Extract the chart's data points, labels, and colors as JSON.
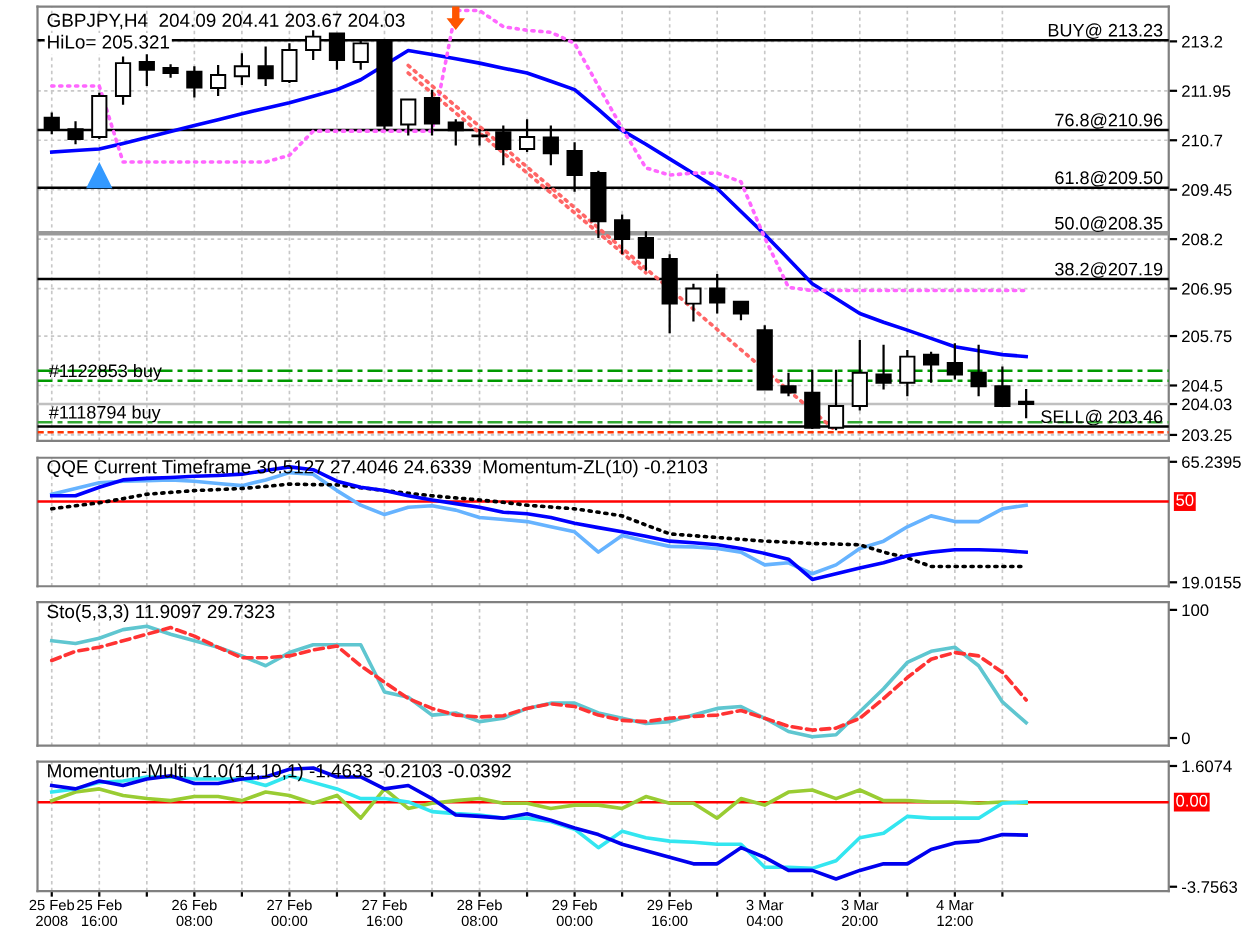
{
  "chart_data": [
    {
      "type": "candlestick",
      "title": "GBPJPY,H4  204.09 204.41 203.67 204.03",
      "subtitle": "HiLo= 205.321",
      "categories": [
        null,
        null,
        null,
        null,
        null,
        null,
        null,
        null,
        null,
        null,
        null,
        null,
        null,
        null,
        null,
        null,
        null,
        null,
        null,
        null,
        null,
        null,
        null,
        null,
        null,
        null,
        null,
        null,
        null,
        null,
        null,
        null,
        null,
        null,
        null,
        null,
        null,
        null,
        null,
        null,
        null,
        null
      ],
      "ohlc": [
        [
          211.27,
          211.4,
          210.85,
          211.0
        ],
        [
          210.98,
          211.18,
          210.6,
          210.73
        ],
        [
          210.78,
          211.9,
          210.73,
          211.82
        ],
        [
          211.82,
          212.82,
          211.6,
          212.65
        ],
        [
          212.68,
          212.9,
          212.07,
          212.48
        ],
        [
          212.53,
          212.62,
          212.28,
          212.4
        ],
        [
          212.43,
          212.57,
          211.78,
          212.03
        ],
        [
          212.02,
          212.6,
          211.82,
          212.35
        ],
        [
          212.32,
          212.9,
          212.1,
          212.57
        ],
        [
          212.57,
          213.07,
          212.07,
          212.27
        ],
        [
          212.2,
          213.15,
          212.15,
          212.98
        ],
        [
          212.98,
          213.48,
          212.73,
          213.32
        ],
        [
          213.4,
          213.4,
          212.48,
          212.73
        ],
        [
          212.68,
          213.23,
          212.48,
          213.15
        ],
        [
          213.2,
          213.23,
          210.98,
          211.07
        ],
        [
          211.1,
          211.73,
          210.82,
          211.73
        ],
        [
          211.77,
          211.98,
          210.82,
          211.12
        ],
        [
          211.15,
          211.23,
          210.57,
          210.95
        ],
        [
          210.82,
          210.98,
          210.57,
          210.8
        ],
        [
          210.9,
          211.07,
          210.07,
          210.48
        ],
        [
          210.48,
          211.23,
          210.4,
          210.78
        ],
        [
          210.77,
          211.07,
          210.07,
          210.37
        ],
        [
          210.43,
          210.65,
          209.4,
          209.82
        ],
        [
          209.87,
          209.93,
          208.23,
          208.65
        ],
        [
          208.68,
          208.82,
          207.82,
          208.2
        ],
        [
          208.23,
          208.4,
          207.4,
          207.73
        ],
        [
          207.7,
          207.82,
          205.82,
          206.57
        ],
        [
          206.57,
          207.07,
          206.12,
          206.95
        ],
        [
          206.95,
          207.32,
          206.32,
          206.6
        ],
        [
          206.62,
          206.62,
          206.15,
          206.32
        ],
        [
          205.9,
          206.02,
          204.4,
          204.4
        ],
        [
          204.48,
          204.82,
          204.23,
          204.32
        ],
        [
          204.32,
          204.9,
          203.4,
          203.43
        ],
        [
          203.43,
          204.9,
          203.37,
          203.98
        ],
        [
          203.98,
          205.65,
          203.87,
          204.82
        ],
        [
          204.78,
          205.53,
          204.4,
          204.57
        ],
        [
          204.57,
          205.4,
          204.23,
          205.23
        ],
        [
          205.28,
          205.35,
          204.57,
          205.03
        ],
        [
          205.07,
          205.57,
          204.65,
          204.78
        ],
        [
          204.82,
          205.53,
          204.23,
          204.48
        ],
        [
          204.48,
          204.98,
          203.98,
          203.98
        ],
        [
          204.09,
          204.41,
          203.67,
          204.03
        ]
      ],
      "series": [
        {
          "type": "line",
          "color": "#0000ff",
          "line_style": "solid",
          "values": [
            210.4,
            210.44,
            210.48,
            210.62,
            210.77,
            210.92,
            211.07,
            211.22,
            211.37,
            211.51,
            211.65,
            211.81,
            211.98,
            212.23,
            null,
            212.97,
            212.87,
            212.76,
            212.65,
            212.52,
            212.4,
            212.19,
            211.98,
            211.48,
            210.95,
            210.6,
            210.23,
            209.86,
            209.48,
            208.9,
            208.32,
            207.7,
            207.07,
            206.7,
            206.32,
            206.1,
            205.9,
            205.69,
            205.48,
            205.38,
            205.28,
            205.23
          ]
        },
        {
          "type": "line",
          "color": "#ff66ff",
          "line_style": "dotted",
          "values": [
            212.07,
            212.07,
            212.07,
            210.15,
            210.15,
            210.15,
            210.15,
            210.15,
            210.15,
            210.15,
            210.32,
            210.93,
            210.93,
            210.93,
            210.93,
            210.93,
            210.93,
            213.98,
            213.98,
            213.57,
            213.48,
            213.43,
            213.15,
            212.07,
            211.0,
            210.0,
            209.82,
            209.87,
            209.87,
            209.65,
            208.23,
            206.98,
            206.9,
            206.9,
            206.9,
            206.9,
            206.9,
            206.9,
            206.9,
            206.9,
            206.9,
            206.9
          ]
        },
        {
          "type": "line",
          "color": "#ff6666",
          "line_style": "dotted",
          "values": [
            null,
            null,
            null,
            null,
            null,
            null,
            null,
            null,
            null,
            null,
            null,
            null,
            null,
            null,
            null,
            212.59,
            null,
            null,
            null,
            null,
            null,
            null,
            null,
            null,
            null,
            null,
            null,
            null,
            null,
            null,
            null,
            null,
            null,
            203.35,
            null,
            null,
            null,
            null,
            null,
            null,
            null,
            null
          ]
        },
        {
          "type": "line",
          "color": "#ff6666",
          "line_style": "dotted",
          "values": [
            null,
            null,
            null,
            null,
            null,
            null,
            null,
            null,
            null,
            null,
            null,
            null,
            null,
            null,
            null,
            212.4,
            null,
            null,
            null,
            null,
            null,
            null,
            null,
            null,
            null,
            207.35,
            null,
            null,
            null,
            null,
            null,
            null,
            null,
            null,
            null,
            null,
            null,
            null,
            null,
            null,
            null,
            null
          ]
        },
        {
          "type": "scatter",
          "color": "#3399ff",
          "marker": "triangle",
          "values": [
            null,
            null,
            209.82,
            null,
            null,
            null,
            null,
            null,
            null,
            null,
            null,
            null,
            null,
            null,
            null,
            null,
            null,
            null,
            null,
            null,
            null,
            null,
            null,
            null,
            null,
            null,
            null,
            null,
            null,
            null,
            null,
            null,
            null,
            null,
            null,
            null,
            null,
            null,
            null,
            null,
            null,
            null
          ]
        },
        {
          "type": "scatter",
          "color": "#ff5500",
          "values": [
            null,
            null,
            null,
            null,
            null,
            null,
            null,
            null,
            null,
            null,
            null,
            null,
            null,
            null,
            null,
            null,
            null,
            213.82,
            null,
            null,
            null,
            null,
            null,
            null,
            null,
            null,
            null,
            null,
            null,
            null,
            null,
            null,
            null,
            null,
            null,
            null,
            null,
            null,
            null,
            null,
            null,
            null
          ]
        }
      ],
      "ylim": [
        203.1,
        214.08
      ],
      "yticks": [
        213.2,
        211.95,
        210.7,
        209.45,
        208.2,
        206.95,
        205.75,
        204.5,
        {
          "value": 204.03,
          "label": "204.03"
        },
        203.25
      ],
      "ref_lines": [
        {
          "axis": "y",
          "value": 213.23,
          "label": "BUY@ 213.23",
          "color": "#000000",
          "line_style": "solid"
        },
        {
          "axis": "y",
          "value": 210.96,
          "label": "76.8@210.96",
          "color": "#000000",
          "line_style": "solid"
        },
        {
          "axis": "y",
          "value": 209.5,
          "label": "61.8@209.50",
          "color": "#000000",
          "line_style": "solid"
        },
        {
          "axis": "y",
          "value": 208.35,
          "label": "50.0@208.35",
          "color": "#999999",
          "line_style": "solid"
        },
        {
          "axis": "y",
          "value": 207.19,
          "label": "38.2@207.19",
          "color": "#000000",
          "line_style": "solid"
        },
        {
          "axis": "y",
          "value": 203.46,
          "label": "SELL@ 203.46",
          "color": "#000000",
          "line_style": "solid"
        },
        {
          "axis": "y",
          "value": 204.87,
          "color": "#009900",
          "line_style": "dashdot"
        },
        {
          "axis": "y",
          "value": 204.62,
          "label": "#1122853 buy",
          "color": "#009900",
          "line_style": "dashdot"
        },
        {
          "axis": "y",
          "value": 203.57,
          "label": "#1118794 buy",
          "color": "#33aa33",
          "line_style": "dashdot"
        },
        {
          "axis": "y",
          "value": 203.32,
          "color": "#ff3300",
          "line_style": "dashed"
        },
        {
          "axis": "y",
          "value": 204.03,
          "color": "#c0c0c0",
          "line_style": "solid"
        }
      ],
      "grid": true,
      "tick_labels": "y"
    },
    {
      "type": "line",
      "title": "QQE Current Timeframe 30.5127 27.4046 24.6339  Momentum-ZL(10) -0.2103",
      "categories": [
        null,
        null,
        null,
        null,
        null,
        null,
        null,
        null,
        null,
        null,
        null,
        null,
        null,
        null,
        null,
        null,
        null,
        null,
        null,
        null,
        null,
        null,
        null,
        null,
        null,
        null,
        null,
        null,
        null,
        null,
        null,
        null,
        null,
        null,
        null,
        null,
        null,
        null,
        null,
        null,
        null,
        null
      ],
      "series": [
        {
          "color": "#66b3ff",
          "line_style": "solid",
          "values": [
            52.8,
            55.0,
            57.2,
            57.8,
            58.0,
            58.3,
            57.8,
            56.9,
            56.1,
            58.3,
            61.1,
            60.5,
            54.2,
            48.6,
            45.0,
            47.8,
            48.4,
            46.7,
            43.9,
            43.1,
            42.3,
            40.3,
            38.4,
            30.6,
            37.0,
            34.8,
            32.8,
            32.6,
            32.0,
            30.6,
            25.7,
            26.5,
            22.3,
            25.7,
            32.0,
            34.8,
            40.3,
            44.5,
            42.3,
            42.3,
            47.2,
            48.6
          ]
        },
        {
          "color": "#000000",
          "line_style": "dotted",
          "values": [
            47.2,
            48.4,
            49.5,
            51.1,
            52.8,
            53.5,
            54.2,
            54.6,
            55.0,
            55.8,
            56.7,
            56.5,
            56.4,
            55.3,
            54.2,
            53.2,
            52.2,
            51.4,
            50.6,
            49.7,
            48.6,
            47.9,
            47.2,
            45.9,
            44.5,
            41.0,
            37.6,
            36.9,
            36.2,
            35.5,
            34.8,
            34.4,
            33.9,
            33.7,
            33.4,
            30.6,
            28.4,
            25.1,
            25.1,
            25.1,
            25.1,
            25.1
          ]
        },
        {
          "color": "#0000ff",
          "line_style": "solid",
          "values": [
            52.2,
            52.2,
            55.5,
            58.3,
            58.9,
            59.2,
            59.7,
            60.0,
            60.5,
            61.9,
            63.3,
            62.2,
            57.8,
            55.5,
            54.2,
            52.2,
            50.6,
            49.2,
            47.8,
            45.9,
            45.3,
            43.9,
            41.7,
            40.0,
            38.4,
            36.7,
            34.8,
            34.2,
            33.4,
            32.0,
            30.1,
            27.9,
            20.1,
            22.3,
            24.5,
            26.5,
            29.2,
            30.6,
            31.5,
            31.5,
            31.2,
            30.6
          ]
        }
      ],
      "ylim": [
        17.5,
        66.8
      ],
      "yticks": [
        65.2395,
        19.0155
      ],
      "ref_lines": [
        {
          "axis": "y",
          "value": 50,
          "label": "50",
          "color": "#ff0000",
          "line_style": "solid"
        }
      ],
      "grid": "x",
      "tick_labels": "y"
    },
    {
      "type": "line",
      "title": "Sto(5,3,3) 11.9097 29.7323",
      "categories": [
        null,
        null,
        null,
        null,
        null,
        null,
        null,
        null,
        null,
        null,
        null,
        null,
        null,
        null,
        null,
        null,
        null,
        null,
        null,
        null,
        null,
        null,
        null,
        null,
        null,
        null,
        null,
        null,
        null,
        null,
        null,
        null,
        null,
        null,
        null,
        null,
        null,
        null,
        null,
        null,
        null,
        null
      ],
      "series": [
        {
          "color": "#5fc6d0",
          "line_style": "solid",
          "values": [
            75.9,
            73.8,
            77.9,
            84.6,
            87.2,
            81.0,
            75.9,
            70.8,
            64.1,
            56.4,
            66.7,
            72.8,
            72.8,
            72.8,
            35.9,
            31.8,
            17.9,
            19.5,
            12.8,
            15.4,
            23.1,
            27.2,
            27.2,
            19.5,
            15.4,
            11.3,
            12.8,
            17.9,
            23.1,
            24.6,
            15.4,
            5.1,
            1.0,
            2.6,
            20.5,
            38.5,
            59.0,
            67.7,
            70.8,
            56.4,
            28.2,
            11.9
          ]
        },
        {
          "color": "#ff3333",
          "line_style": "dashed",
          "values": [
            60.5,
            67.7,
            70.8,
            75.9,
            81.0,
            86.2,
            79.5,
            70.8,
            62.6,
            62.6,
            64.1,
            68.7,
            71.8,
            56.4,
            43.6,
            30.8,
            23.1,
            17.9,
            16.4,
            17.4,
            23.1,
            26.7,
            24.6,
            17.9,
            13.8,
            12.8,
            15.4,
            16.9,
            17.9,
            21.5,
            15.4,
            9.2,
            6.2,
            7.7,
            15.4,
            30.8,
            47.2,
            61.5,
            66.7,
            64.1,
            51.3,
            29.7
          ]
        }
      ],
      "ylim": [
        -6,
        106
      ],
      "yticks": [
        100,
        0
      ],
      "grid": "x",
      "tick_labels": "y"
    },
    {
      "type": "line",
      "title": "Momentum-Multi v1.0(14,10,1) -1.4633 -0.2103 -0.0392",
      "categories": [
        "25 Feb 2008",
        null,
        "25 Feb 16:00",
        null,
        null,
        null,
        "26 Feb 08:00",
        null,
        null,
        null,
        "27 Feb 00:00",
        null,
        null,
        null,
        "27 Feb 16:00",
        null,
        null,
        null,
        "28 Feb 08:00",
        null,
        null,
        null,
        "29 Feb 00:00",
        null,
        null,
        null,
        "29 Feb 16:00",
        null,
        null,
        null,
        "3 Mar 04:00",
        null,
        null,
        null,
        "3 Mar 20:00",
        null,
        null,
        null,
        "4 Mar 12:00",
        null,
        null,
        null
      ],
      "series": [
        {
          "color": "#99cc33",
          "line_style": "solid",
          "values": [
            0.07,
            0.45,
            0.59,
            0.3,
            0.16,
            0.07,
            0.25,
            0.25,
            0.07,
            0.45,
            0.3,
            -0.05,
            0.3,
            -0.71,
            0.59,
            -0.28,
            -0.05,
            0.07,
            0.16,
            -0.05,
            -0.05,
            -0.28,
            -0.13,
            -0.13,
            -0.28,
            0.25,
            -0.05,
            -0.05,
            -0.71,
            0.16,
            -0.13,
            0.45,
            0.54,
            0.16,
            0.54,
            0.07,
            0.07,
            0.01,
            0.01,
            -0.05,
            0.01,
            -0.04
          ]
        },
        {
          "color": "#33e6f0",
          "line_style": "solid",
          "values": [
            0.45,
            0.59,
            0.88,
            0.94,
            1.12,
            1.12,
            1.03,
            1.03,
            1.03,
            0.74,
            1.17,
            0.88,
            0.59,
            0.16,
            0.16,
            0.01,
            -0.42,
            -0.51,
            -0.57,
            -0.71,
            -0.71,
            -0.86,
            -1.2,
            -2.02,
            -1.29,
            -1.58,
            -1.73,
            -1.78,
            -1.87,
            -1.87,
            -2.89,
            -2.89,
            -2.94,
            -2.6,
            -1.58,
            -1.38,
            -0.63,
            -0.71,
            -0.71,
            -0.71,
            -0.05,
            0.01
          ]
        },
        {
          "color": "#0000ee",
          "line_style": "solid",
          "values": [
            0.74,
            0.59,
            0.94,
            0.74,
            1.03,
            1.17,
            0.83,
            0.83,
            1.03,
            1.12,
            1.46,
            1.52,
            1.12,
            1.12,
            0.59,
            0.74,
            0.16,
            -0.57,
            -0.63,
            -0.71,
            -0.51,
            -0.8,
            -1.15,
            -1.44,
            -1.87,
            -2.16,
            -2.45,
            -2.74,
            -2.74,
            -2.02,
            -2.45,
            -3.03,
            -3.03,
            -3.41,
            -3.03,
            -2.74,
            -2.74,
            -2.1,
            -1.81,
            -1.73,
            -1.44,
            -1.46
          ]
        }
      ],
      "ylim": [
        -3.95,
        1.8
      ],
      "yticks": [
        1.6074,
        -3.7563
      ],
      "ref_lines": [
        {
          "axis": "y",
          "value": 0,
          "label": "0.00",
          "color": "#ff0000",
          "line_style": "solid"
        }
      ],
      "grid": "x"
    }
  ]
}
